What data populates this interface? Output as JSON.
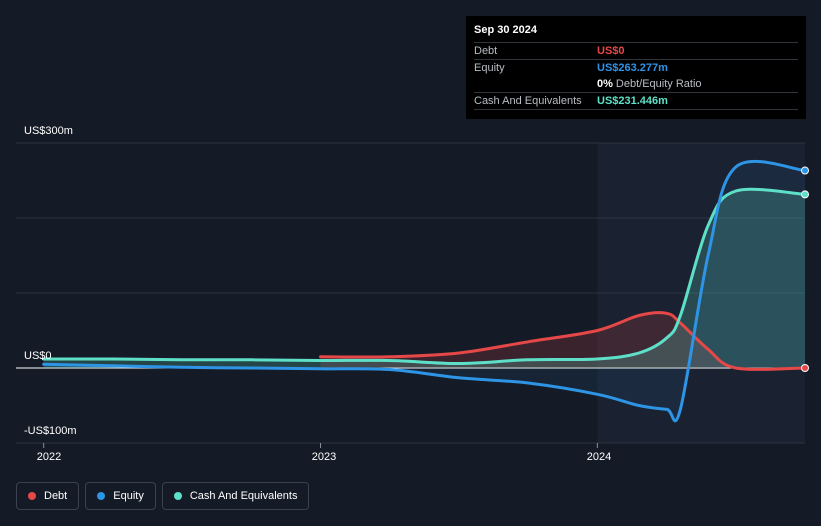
{
  "tooltip": {
    "date": "Sep 30 2024",
    "debt_label": "Debt",
    "debt_value": "US$0",
    "equity_label": "Equity",
    "equity_value": "US$263.277m",
    "ratio_value": "0%",
    "ratio_label": "Debt/Equity Ratio",
    "cash_label": "Cash And Equivalents",
    "cash_value": "US$231.446m"
  },
  "legend": {
    "debt": "Debt",
    "equity": "Equity",
    "cash": "Cash And Equivalents"
  },
  "colors": {
    "debt": "#e64848",
    "equity": "#2e94e6",
    "cash": "#5ee0c8",
    "background": "#151b26"
  },
  "chart_data": {
    "type": "line",
    "y_unit": "US$m",
    "ylim": [
      -100,
      300
    ],
    "y_ticks": [
      {
        "value": 300,
        "label": "US$300m"
      },
      {
        "value": 0,
        "label": "US$0"
      },
      {
        "value": -100,
        "label": "-US$100m"
      }
    ],
    "x_ticks": [
      {
        "value": 2022.0,
        "label": "2022"
      },
      {
        "value": 2023.0,
        "label": "2023"
      },
      {
        "value": 2024.0,
        "label": "2024"
      }
    ],
    "xlim": [
      2021.9,
      2024.75
    ],
    "grid": true,
    "legend_position": "bottom-left",
    "series": [
      {
        "name": "Debt",
        "key": "debt",
        "x": [
          2023.0,
          2023.25,
          2023.5,
          2023.75,
          2024.0,
          2024.15,
          2024.25,
          2024.3,
          2024.4,
          2024.5,
          2024.75
        ],
        "y": [
          15,
          15,
          20,
          35,
          50,
          70,
          73,
          60,
          25,
          0,
          0
        ]
      },
      {
        "name": "Equity",
        "key": "equity",
        "x": [
          2022.0,
          2022.25,
          2022.5,
          2022.75,
          2023.0,
          2023.25,
          2023.5,
          2023.75,
          2024.0,
          2024.15,
          2024.25,
          2024.3,
          2024.4,
          2024.5,
          2024.75
        ],
        "y": [
          5,
          3,
          1,
          0,
          -1,
          -2,
          -13,
          -20,
          -35,
          -50,
          -55,
          -55,
          150,
          268,
          263.277
        ]
      },
      {
        "name": "Cash And Equivalents",
        "key": "cash",
        "x": [
          2022.0,
          2022.25,
          2022.5,
          2022.75,
          2023.0,
          2023.25,
          2023.5,
          2023.75,
          2024.0,
          2024.15,
          2024.25,
          2024.3,
          2024.4,
          2024.5,
          2024.75
        ],
        "y": [
          12,
          12,
          11,
          11,
          10,
          10,
          6,
          11,
          12,
          20,
          40,
          70,
          190,
          236,
          231.446
        ]
      }
    ]
  }
}
